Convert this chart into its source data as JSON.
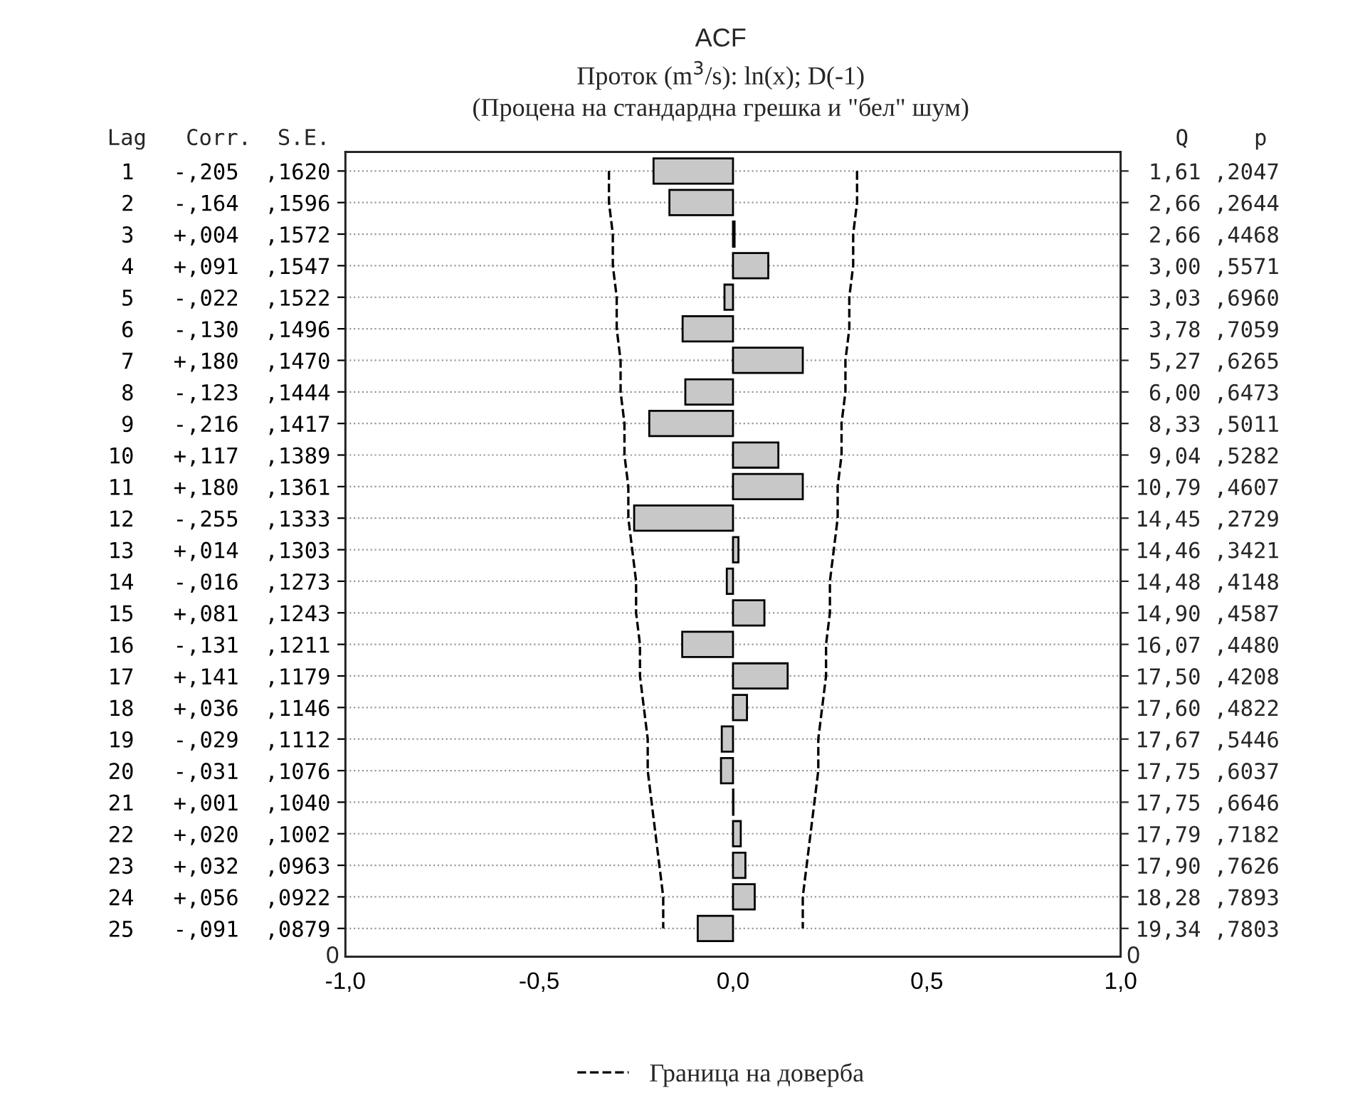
{
  "chart_data": {
    "type": "bar",
    "orientation": "horizontal",
    "title": "ACF",
    "subtitle": "Проток (m$^{3}$/s): ln(x); D(-1)\n(Процена на стандардна грешка и \"бел\" шум)",
    "categories": [
      " 1   -,205  ,1620",
      " 2   -,164  ,1596",
      " 3   +,004  ,1572",
      " 4   +,091  ,1547",
      " 5   -,022  ,1522",
      " 6   -,130  ,1496",
      " 7   +,180  ,1470",
      " 8   -,123  ,1444",
      " 9   -,216  ,1417",
      "10   +,117  ,1389",
      "11   +,180  ,1361",
      "12   -,255  ,1333",
      "13   +,014  ,1303",
      "14   -,016  ,1273",
      "15   +,081  ,1243",
      "16   -,131  ,1211",
      "17   +,141  ,1179",
      "18   +,036  ,1146",
      "19   -,029  ,1112",
      "20   -,031  ,1076",
      "21   +,001  ,1040",
      "22   +,020  ,1002",
      "23   +,032  ,0963",
      "24   +,056  ,0922",
      "25   -,091  ,0879"
    ],
    "y2_categories": [
      " 1,61 ,2047",
      " 2,66 ,2644",
      " 2,66 ,4468",
      " 3,00 ,5571",
      " 3,03 ,6960",
      " 3,78 ,7059",
      " 5,27 ,6265",
      " 6,00 ,6473",
      " 8,33 ,5011",
      " 9,04 ,5282",
      "10,79 ,4607",
      "14,45 ,2729",
      "14,46 ,3421",
      "14,48 ,4148",
      "14,90 ,4587",
      "16,07 ,4480",
      "17,50 ,4208",
      "17,60 ,4822",
      "17,67 ,5446",
      "17,75 ,6037",
      "17,75 ,6646",
      "17,79 ,7182",
      "17,90 ,7626",
      "18,28 ,7893",
      "19,34 ,7803"
    ],
    "series": [
      {
        "color": "#c8c8c8",
        "values": [
          -0.205,
          -0.164,
          0.004,
          0.091,
          -0.022,
          -0.13,
          0.18,
          -0.123,
          -0.216,
          0.117,
          0.18,
          -0.255,
          0.014,
          -0.016,
          0.081,
          -0.131,
          0.141,
          0.036,
          -0.029,
          -0.031,
          0.001,
          0.02,
          0.032,
          0.056,
          -0.091
        ]
      },
      {
        "type": "line",
        "name": "Граница на доверба",
        "color": "#000000",
        "line_style": "dashed",
        "values": [
          -0.32,
          -0.32,
          -0.31,
          -0.31,
          -0.3,
          -0.3,
          -0.29,
          -0.29,
          -0.28,
          -0.28,
          -0.27,
          -0.27,
          -0.26,
          -0.25,
          -0.25,
          -0.24,
          -0.24,
          -0.23,
          -0.22,
          -0.22,
          -0.21,
          -0.2,
          -0.19,
          -0.18,
          -0.18
        ]
      },
      {
        "type": "line",
        "color": "#000000",
        "line_style": "dashed",
        "values": [
          0.32,
          0.32,
          0.31,
          0.31,
          0.3,
          0.3,
          0.29,
          0.29,
          0.28,
          0.28,
          0.27,
          0.27,
          0.26,
          0.25,
          0.25,
          0.24,
          0.24,
          0.23,
          0.22,
          0.22,
          0.21,
          0.2,
          0.19,
          0.18,
          0.18
        ]
      }
    ],
    "xlim": [
      -1,
      1
    ],
    "xticks": [
      {
        "value": -1,
        "label": "-1,0"
      },
      {
        "value": -0.5,
        "label": "-0,5"
      },
      {
        "value": 0,
        "label": "0,0"
      },
      {
        "value": 0.5,
        "label": "0,5"
      },
      {
        "value": 1,
        "label": "1,0"
      }
    ],
    "annotations": [
      "Lag   Corr.  S.E.",
      "   Q     p",
      "0",
      "0"
    ],
    "grid": "y",
    "legend": "bottom"
  }
}
